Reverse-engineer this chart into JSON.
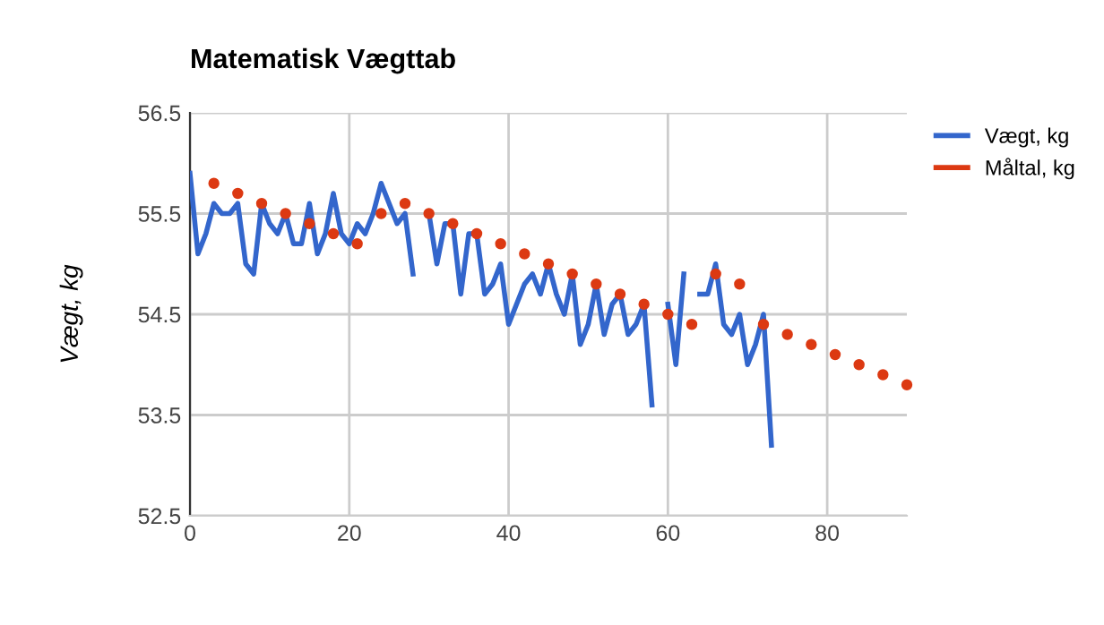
{
  "chart_data": {
    "type": "line",
    "title": "Matematisk Vægttab",
    "ylabel": "Vægt, kg",
    "x": [
      0,
      1,
      2,
      3,
      4,
      5,
      6,
      7,
      8,
      9,
      10,
      11,
      12,
      13,
      14,
      15,
      16,
      17,
      18,
      19,
      20,
      21,
      22,
      23,
      24,
      25,
      26,
      27,
      28,
      29,
      30,
      31,
      32,
      33,
      34,
      35,
      36,
      37,
      38,
      39,
      40,
      41,
      42,
      43,
      44,
      45,
      46,
      47,
      48,
      49,
      50,
      51,
      52,
      53,
      54,
      55,
      56,
      57,
      58,
      59,
      60,
      61,
      62,
      63,
      64,
      65,
      66,
      67,
      68,
      69,
      70,
      71,
      72,
      73
    ],
    "series": [
      {
        "name": "Vægt, kg",
        "color": "#3366cc",
        "values": [
          55.9,
          55.1,
          55.3,
          55.6,
          55.5,
          55.5,
          55.6,
          55.0,
          54.9,
          55.6,
          55.4,
          55.3,
          55.5,
          55.2,
          55.2,
          55.6,
          55.1,
          55.3,
          55.7,
          55.3,
          55.2,
          55.4,
          55.3,
          55.5,
          55.8,
          55.6,
          55.4,
          55.5,
          54.9,
          null,
          55.5,
          55.0,
          55.4,
          55.4,
          54.7,
          55.3,
          55.3,
          54.7,
          54.8,
          55.0,
          54.4,
          54.6,
          54.8,
          54.9,
          54.7,
          55.0,
          54.7,
          54.5,
          54.9,
          54.2,
          54.4,
          54.8,
          54.3,
          54.6,
          54.7,
          54.3,
          54.4,
          54.6,
          53.6,
          null,
          54.6,
          54.0,
          54.9,
          null,
          54.7,
          54.7,
          55.0,
          54.4,
          54.3,
          54.5,
          54.0,
          54.2,
          54.5,
          53.2
        ]
      },
      {
        "name": "Måltal, kg",
        "color": "#dc3912",
        "type": "scatter",
        "x": [
          3,
          6,
          9,
          12,
          15,
          18,
          21,
          24,
          27,
          30,
          33,
          36,
          39,
          42,
          45,
          48,
          51,
          54,
          57,
          60,
          63,
          66,
          69,
          72,
          75,
          78,
          81,
          84,
          87,
          90
        ],
        "values": [
          55.8,
          55.7,
          55.6,
          55.5,
          55.4,
          55.3,
          55.2,
          55.5,
          55.6,
          55.5,
          55.4,
          55.3,
          55.2,
          55.1,
          55.0,
          54.9,
          54.8,
          54.7,
          54.6,
          54.5,
          54.4,
          54.9,
          54.8,
          54.4,
          54.3,
          54.2,
          54.1,
          54.0,
          53.9,
          53.8
        ]
      }
    ],
    "xlim": [
      0,
      90
    ],
    "xticks": [
      0,
      20,
      40,
      60,
      80
    ],
    "ylim": [
      52.5,
      56.5
    ],
    "yticks": [
      52.5,
      53.5,
      54.5,
      55.5,
      56.5
    ],
    "grid": true,
    "legend": "right"
  }
}
